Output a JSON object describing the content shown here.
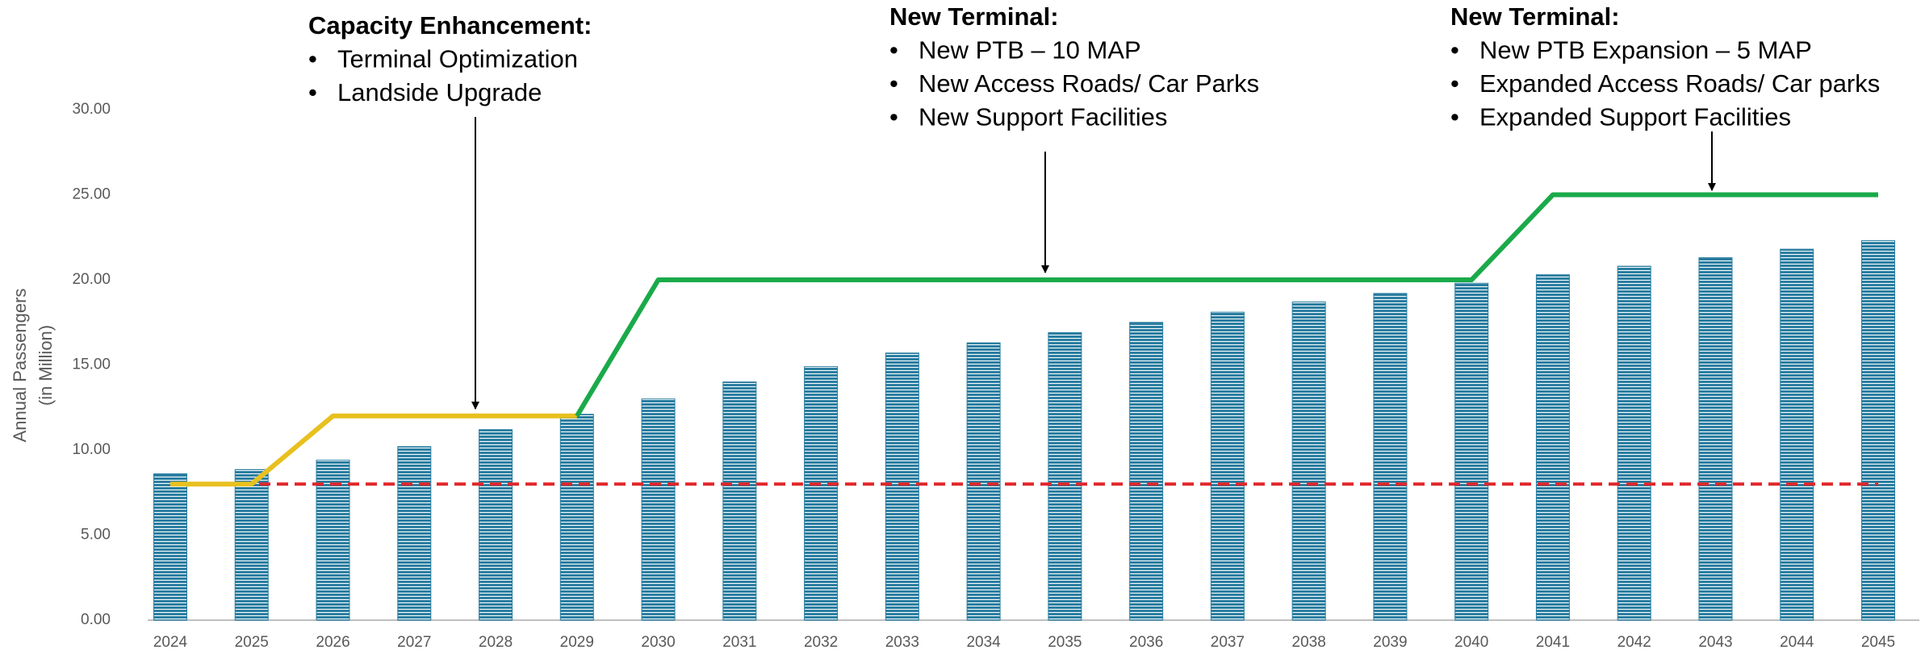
{
  "chart_data": {
    "type": "bar",
    "y_label": [
      "Annual Passengers",
      "(in Million)"
    ],
    "categories": [
      "2024",
      "2025",
      "2026",
      "2027",
      "2028",
      "2029",
      "2030",
      "2031",
      "2032",
      "2033",
      "2034",
      "2035",
      "2036",
      "2037",
      "2038",
      "2039",
      "2040",
      "2041",
      "2042",
      "2043",
      "2044",
      "2045"
    ],
    "series": [
      {
        "type": "bar",
        "color": "#2b7ea1",
        "values": [
          8.6,
          8.85,
          9.4,
          10.2,
          11.2,
          12.1,
          13.0,
          14.0,
          14.9,
          15.7,
          16.3,
          16.9,
          17.5,
          18.1,
          18.7,
          19.2,
          19.8,
          20.3,
          20.8,
          21.3,
          21.8,
          22.3
        ]
      },
      {
        "type": "line",
        "color": "#e0262a",
        "dashed": true,
        "values": [
          8,
          8,
          8,
          8,
          8,
          8,
          8,
          8,
          8,
          8,
          8,
          8,
          8,
          8,
          8,
          8,
          8,
          8,
          8,
          8,
          8,
          8
        ]
      },
      {
        "type": "line",
        "color": "#e8c01f",
        "values": [
          8,
          8,
          12,
          12,
          12,
          12,
          null,
          null,
          null,
          null,
          null,
          null,
          null,
          null,
          null,
          null,
          null,
          null,
          null,
          null,
          null,
          null
        ]
      },
      {
        "type": "line",
        "color": "#1aaa4a",
        "values": [
          null,
          null,
          null,
          null,
          null,
          12,
          20,
          20,
          20,
          20,
          20,
          20,
          20,
          20,
          20,
          20,
          20,
          25,
          25,
          25,
          25,
          25
        ]
      }
    ],
    "ylim": [
      0,
      30
    ],
    "yticks": [
      {
        "value": 0,
        "label": "0.00"
      },
      {
        "value": 5,
        "label": "5.00"
      },
      {
        "value": 10,
        "label": "10.00"
      },
      {
        "value": 15,
        "label": "15.00"
      },
      {
        "value": 20,
        "label": "20.00"
      },
      {
        "value": 25,
        "label": "25.00"
      },
      {
        "value": 30,
        "label": "30.00"
      }
    ],
    "annotations": [
      {
        "title": "Capacity Enhancement:",
        "items": [
          "Terminal Optimization",
          "Landside Upgrade"
        ]
      },
      {
        "title": "New Terminal:",
        "items": [
          "New PTB – 10 MAP",
          "New Access Roads/ Car Parks",
          "New Support Facilities"
        ]
      },
      {
        "title": "New Terminal:",
        "items": [
          "New PTB Expansion – 5 MAP",
          "Expanded Access Roads/ Car parks",
          "Expanded Support Facilities"
        ]
      }
    ]
  }
}
